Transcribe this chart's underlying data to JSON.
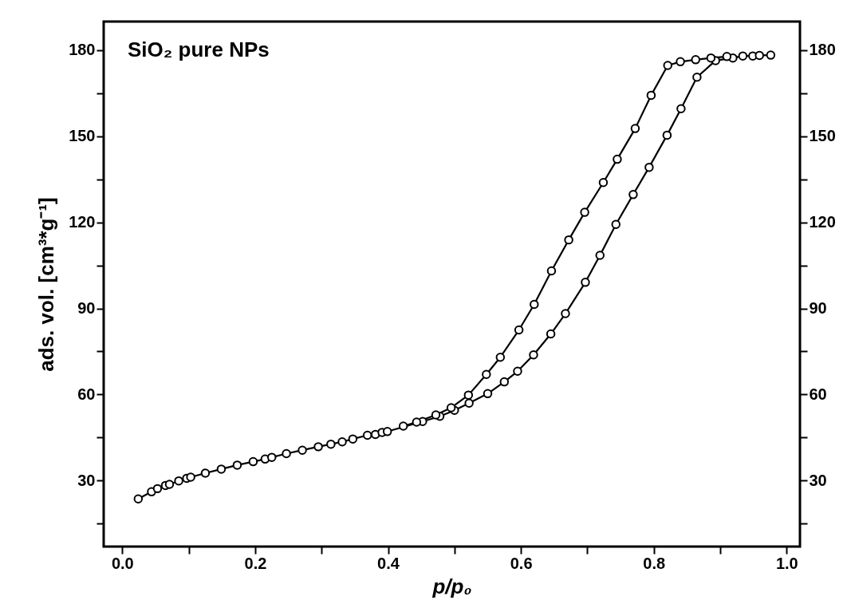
{
  "chart_data": {
    "type": "line",
    "title": "SiO₂ pure NPs",
    "xlabel": "p/p₀",
    "ylabel": "ads. vol. [cm³*g⁻¹]",
    "marker": "circle",
    "legend": false,
    "grid": false,
    "xlim": [
      -0.028,
      1.02
    ],
    "xticks": [
      {
        "value": 0,
        "label": "0.0"
      },
      {
        "value": 0.1,
        "label": null
      },
      {
        "value": 0.2,
        "label": "0.2"
      },
      {
        "value": 0.3,
        "label": null
      },
      {
        "value": 0.4,
        "label": "0.4"
      },
      {
        "value": 0.5,
        "label": null
      },
      {
        "value": 0.6,
        "label": "0.6"
      },
      {
        "value": 0.7,
        "label": null
      },
      {
        "value": 0.8,
        "label": "0.8"
      },
      {
        "value": 0.9,
        "label": null
      },
      {
        "value": 1,
        "label": "1.0"
      }
    ],
    "ylim": [
      7,
      190
    ],
    "yticks": [
      {
        "value": 15,
        "label": null
      },
      30,
      {
        "value": 45,
        "label": null
      },
      60,
      {
        "value": 75,
        "label": null
      },
      90,
      {
        "value": 105,
        "label": null
      },
      120,
      {
        "value": 135,
        "label": null
      },
      150,
      {
        "value": 165,
        "label": null
      },
      180
    ],
    "y2lim": [
      7,
      190
    ],
    "y2ticks": [
      {
        "value": 15,
        "label": null
      },
      30,
      {
        "value": 45,
        "label": null
      },
      60,
      {
        "value": 75,
        "label": null
      },
      90,
      {
        "value": 105,
        "label": null
      },
      120,
      {
        "value": 135,
        "label": null
      },
      150,
      {
        "value": 165,
        "label": null
      },
      180
    ],
    "series": [
      {
        "color": "#000000",
        "x": [
          0.024,
          0.044,
          0.053,
          0.065,
          0.071,
          0.085,
          0.097,
          0.103,
          0.125,
          0.149,
          0.173,
          0.197,
          0.215,
          0.225,
          0.247,
          0.271,
          0.295,
          0.314,
          0.331,
          0.347,
          0.369,
          0.381,
          0.391,
          0.399,
          0.452,
          0.478,
          0.5,
          0.522,
          0.55,
          0.575,
          0.595,
          0.619,
          0.645,
          0.667,
          0.697,
          0.719,
          0.743,
          0.769,
          0.793,
          0.82,
          0.841,
          0.865,
          0.893,
          0.919,
          0.934,
          0.949,
          0.959,
          0.976
        ],
        "values": [
          23.6,
          26.1,
          27.2,
          28.3,
          28.7,
          29.9,
          30.8,
          31.2,
          32.6,
          34.0,
          35.4,
          36.6,
          37.5,
          38.1,
          39.4,
          40.6,
          41.8,
          42.7,
          43.5,
          44.5,
          45.8,
          46.1,
          46.8,
          47.1,
          50.6,
          52.4,
          54.5,
          57.0,
          60.3,
          64.4,
          68.1,
          73.8,
          81.1,
          88.2,
          99.1,
          108.5,
          119.3,
          129.7,
          139.2,
          150.4,
          159.6,
          170.6,
          176.4,
          177.3,
          178.0,
          178.0,
          178.2,
          178.3
        ]
      },
      {
        "color": "#000000",
        "x": [
          0.91,
          0.886,
          0.863,
          0.84,
          0.821,
          0.796,
          0.772,
          0.745,
          0.724,
          0.696,
          0.672,
          0.646,
          0.62,
          0.597,
          0.569,
          0.548,
          0.521,
          0.495,
          0.472,
          0.443,
          0.423
        ],
        "values": [
          177.8,
          177.3,
          176.7,
          176.0,
          174.7,
          164.3,
          152.7,
          142.0,
          133.9,
          123.5,
          113.9,
          103.1,
          91.4,
          82.5,
          73.0,
          67.0,
          59.8,
          55.4,
          52.9,
          50.4,
          49.0
        ]
      }
    ]
  }
}
